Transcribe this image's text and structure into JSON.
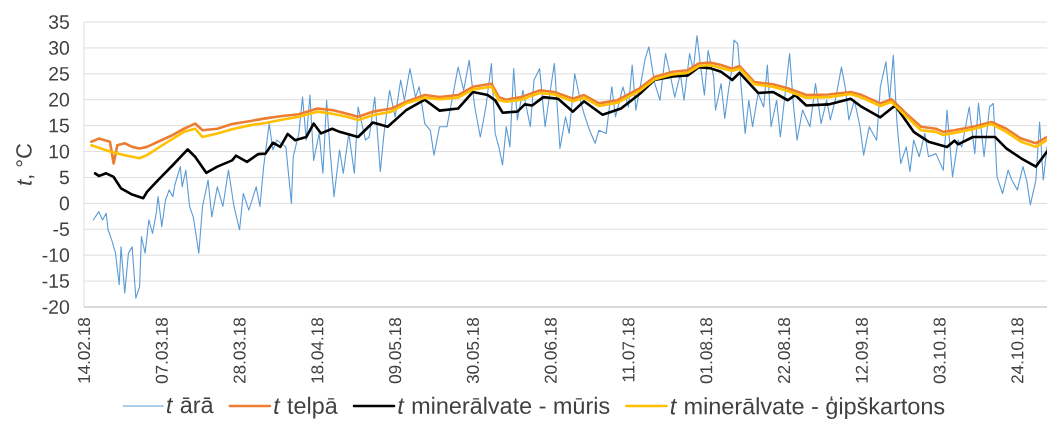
{
  "chart_data": {
    "type": "line",
    "ylabel": "*t*, °C",
    "xlim": [
      "2018-02-14",
      "2018-11-01"
    ],
    "xticks": [
      {
        "value": "2018-02-14",
        "label": "14.02.18"
      },
      {
        "value": "2018-03-07",
        "label": "07.03.18"
      },
      {
        "value": "2018-03-28",
        "label": "28.03.18"
      },
      {
        "value": "2018-04-18",
        "label": "18.04.18"
      },
      {
        "value": "2018-05-09",
        "label": "09.05.18"
      },
      {
        "value": "2018-05-30",
        "label": "30.05.18"
      },
      {
        "value": "2018-06-20",
        "label": "20.06.18"
      },
      {
        "value": "2018-07-11",
        "label": "11.07.18"
      },
      {
        "value": "2018-08-01",
        "label": "01.08.18"
      },
      {
        "value": "2018-08-22",
        "label": "22.08.18"
      },
      {
        "value": "2018-09-12",
        "label": "12.09.18"
      },
      {
        "value": "2018-10-03",
        "label": "03.10.18"
      },
      {
        "value": "2018-10-24",
        "label": "24.10.18"
      }
    ],
    "ylim": [
      -20,
      35
    ],
    "yticks": [
      -20,
      -15,
      -10,
      -5,
      0,
      5,
      10,
      15,
      20,
      25,
      30,
      35
    ],
    "grid": "y",
    "legend": "bottom",
    "series": [
      {
        "name": "*t* ārā",
        "color": "#5b9bd5",
        "x": [
          "2018-02-16T12:00",
          "2018-02-18",
          "2018-02-19",
          "2018-02-20",
          "2018-02-20T12:00",
          "2018-02-21T12:00",
          "2018-02-22T12:00",
          "2018-02-23T12:00",
          "2018-02-24",
          "2018-02-25",
          "2018-02-26",
          "2018-02-27",
          "2018-02-28",
          "2018-03-01",
          "2018-03-01T12:00",
          "2018-03-02T12:00",
          "2018-03-03T12:00",
          "2018-03-04T12:00",
          "2018-03-05T12:00",
          "2018-03-06",
          "2018-03-07",
          "2018-03-08",
          "2018-03-09",
          "2018-03-10",
          "2018-03-10T12:00",
          "2018-03-12",
          "2018-03-12T12:00",
          "2018-03-13T12:00",
          "2018-03-14T12:00",
          "2018-03-15T12:00",
          "2018-03-17",
          "2018-03-18",
          "2018-03-19T12:00",
          "2018-03-20T12:00",
          "2018-03-22",
          "2018-03-23T12:00",
          "2018-03-25",
          "2018-03-26T12:00",
          "2018-03-28",
          "2018-03-29",
          "2018-03-30T12:00",
          "2018-04-01T12:00",
          "2018-04-02T12:00",
          "2018-04-03T12:00",
          "2018-04-05",
          "2018-04-06",
          "2018-04-07",
          "2018-04-09T12:00",
          "2018-04-11",
          "2018-04-11T12:00",
          "2018-04-13",
          "2018-04-14",
          "2018-04-15",
          "2018-04-16",
          "2018-04-17",
          "2018-04-18T12:00",
          "2018-04-19T12:00",
          "2018-04-20T12:00",
          "2018-04-21T12:00",
          "2018-04-22T12:00",
          "2018-04-24",
          "2018-04-25",
          "2018-04-26T12:00",
          "2018-04-28",
          "2018-04-29",
          "2018-05-01",
          "2018-05-02",
          "2018-05-03T12:00",
          "2018-05-05",
          "2018-05-06",
          "2018-05-07T12:00",
          "2018-05-09",
          "2018-05-10T12:00",
          "2018-05-11T12:00",
          "2018-05-13",
          "2018-05-14T12:00",
          "2018-05-15T12:00",
          "2018-05-17",
          "2018-05-18T12:00",
          "2018-05-19T12:00",
          "2018-05-21",
          "2018-05-23",
          "2018-05-24T12:00",
          "2018-05-26",
          "2018-05-27T12:00",
          "2018-05-29",
          "2018-05-30T12:00",
          "2018-06-01",
          "2018-06-02T12:00",
          "2018-06-04",
          "2018-06-05",
          "2018-06-06",
          "2018-06-07",
          "2018-06-08",
          "2018-06-09",
          "2018-06-10",
          "2018-06-11",
          "2018-06-12T12:00",
          "2018-06-14T12:00",
          "2018-06-15T12:00",
          "2018-06-17",
          "2018-06-18T12:00",
          "2018-06-19T12:00",
          "2018-06-21",
          "2018-06-22T12:00",
          "2018-06-24",
          "2018-06-25",
          "2018-06-26T12:00",
          "2018-06-28",
          "2018-06-29",
          "2018-06-30T12:00",
          "2018-07-02",
          "2018-07-03",
          "2018-07-05",
          "2018-07-06T12:00",
          "2018-07-07T12:00",
          "2018-07-09T12:00",
          "2018-07-11",
          "2018-07-12",
          "2018-07-13",
          "2018-07-14T12:00",
          "2018-07-15T12:00",
          "2018-07-16T12:00",
          "2018-07-18",
          "2018-07-19T12:00",
          "2018-07-21",
          "2018-07-22",
          "2018-07-23T12:00",
          "2018-07-25",
          "2018-07-26",
          "2018-07-27T12:00",
          "2018-07-28T12:00",
          "2018-07-29T12:00",
          "2018-07-30T12:00",
          "2018-07-31T12:00",
          "2018-08-01T12:00",
          "2018-08-03",
          "2018-08-03T12:00",
          "2018-08-05",
          "2018-08-06",
          "2018-08-07",
          "2018-08-08",
          "2018-08-08T12:00",
          "2018-08-09T12:00",
          "2018-08-10T12:00",
          "2018-08-11T12:00",
          "2018-08-12T12:00",
          "2018-08-13T12:00",
          "2018-08-15",
          "2018-08-16T12:00",
          "2018-08-17T12:00",
          "2018-08-18T12:00",
          "2018-08-20",
          "2018-08-21",
          "2018-08-22T12:00",
          "2018-08-23T12:00",
          "2018-08-24T12:00",
          "2018-08-25T12:00",
          "2018-08-27",
          "2018-08-29",
          "2018-08-30T12:00",
          "2018-09-01",
          "2018-09-02T12:00",
          "2018-09-03T12:00",
          "2018-09-05",
          "2018-09-06T12:00",
          "2018-09-07T12:00",
          "2018-09-08T12:00",
          "2018-09-10",
          "2018-09-11T12:00",
          "2018-09-12T12:00",
          "2018-09-14",
          "2018-09-16",
          "2018-09-17",
          "2018-09-18T12:00",
          "2018-09-19T12:00",
          "2018-09-20T12:00",
          "2018-09-21T12:00",
          "2018-09-22T12:00",
          "2018-09-24",
          "2018-09-25",
          "2018-09-26",
          "2018-09-27T12:00",
          "2018-09-29",
          "2018-09-30",
          "2018-10-02",
          "2018-10-04",
          "2018-10-05",
          "2018-10-06T12:00",
          "2018-10-08",
          "2018-10-09",
          "2018-10-11",
          "2018-10-12T12:00",
          "2018-10-13T12:00",
          "2018-10-15",
          "2018-10-16T12:00",
          "2018-10-17T12:00",
          "2018-10-18T12:00",
          "2018-10-20",
          "2018-10-21T12:00",
          "2018-10-22T12:00",
          "2018-10-24",
          "2018-10-25T12:00",
          "2018-10-26T12:00",
          "2018-10-27T12:00",
          "2018-10-29",
          "2018-10-30",
          "2018-10-31",
          "2018-11-01"
        ],
        "values": [
          -3.2,
          -1.6,
          -3.2,
          -1.9,
          -5.1,
          -7.1,
          -9.6,
          -15.7,
          -8.4,
          -17.3,
          -9.6,
          -8.4,
          -18.3,
          -16.1,
          -6.4,
          -9.6,
          -3.2,
          -5.8,
          -1.9,
          1.3,
          -4.5,
          0.6,
          2.6,
          1.3,
          3.5,
          7.1,
          3.2,
          6.4,
          -0.6,
          -2.6,
          -9.6,
          -0.6,
          4.5,
          -2.6,
          3.2,
          -0.6,
          6.4,
          -0.6,
          -5.1,
          1.9,
          -1.3,
          3.2,
          -0.6,
          7.1,
          15.4,
          10.3,
          12.2,
          10.9,
          0.0,
          9.0,
          13.5,
          20.5,
          12.2,
          20.9,
          8.3,
          13.5,
          5.8,
          19.9,
          9.6,
          1.3,
          10.3,
          5.8,
          13.5,
          5.8,
          18.6,
          12.2,
          12.8,
          20.5,
          6.1,
          13.5,
          21.8,
          16.7,
          23.8,
          19.9,
          26.0,
          20.5,
          22.5,
          15.4,
          14.1,
          9.3,
          14.8,
          14.8,
          20.5,
          26.3,
          21.8,
          27.6,
          18.6,
          12.8,
          18.6,
          27.0,
          13.5,
          10.9,
          7.4,
          14.8,
          10.9,
          26.0,
          16.1,
          21.8,
          14.8,
          23.8,
          26.0,
          14.8,
          19.9,
          27.0,
          10.6,
          16.7,
          13.5,
          25.0,
          19.9,
          17.3,
          14.1,
          11.6,
          14.1,
          13.5,
          22.5,
          16.7,
          22.5,
          18.6,
          26.7,
          18.0,
          23.8,
          27.9,
          30.2,
          23.4,
          19.9,
          28.9,
          25.7,
          20.5,
          25.0,
          19.9,
          28.9,
          25.7,
          32.4,
          26.3,
          20.9,
          29.5,
          24.4,
          18.0,
          23.1,
          16.4,
          21.8,
          26.3,
          31.5,
          30.8,
          21.8,
          13.5,
          19.9,
          14.8,
          21.2,
          18.6,
          26.7,
          14.8,
          19.9,
          12.8,
          22.5,
          28.9,
          19.3,
          12.2,
          18.0,
          14.8,
          23.1,
          15.4,
          19.9,
          16.1,
          20.5,
          26.3,
          22.5,
          16.1,
          19.9,
          14.8,
          9.3,
          14.8,
          12.2,
          22.5,
          27.3,
          19.9,
          28.6,
          15.4,
          7.7,
          10.9,
          6.1,
          12.2,
          9.0,
          13.5,
          9.0,
          9.6,
          6.4,
          18.0,
          5.1,
          12.2,
          10.9,
          18.6,
          9.6,
          19.3,
          9.0,
          18.6,
          19.3,
          5.1,
          1.9,
          6.4,
          4.5,
          2.6,
          7.1,
          4.5,
          -0.3,
          4.5,
          15.7,
          4.5,
          10.9
        ]
      },
      {
        "name": "*t* telpā",
        "color": "#ed7d31",
        "x": [
          "2018-02-16",
          "2018-02-18",
          "2018-02-21",
          "2018-02-22",
          "2018-02-23",
          "2018-02-25",
          "2018-02-27",
          "2018-03-01",
          "2018-03-03",
          "2018-03-06",
          "2018-03-10",
          "2018-03-13",
          "2018-03-16",
          "2018-03-18",
          "2018-03-22",
          "2018-03-26",
          "2018-03-31",
          "2018-04-04",
          "2018-04-08",
          "2018-04-13",
          "2018-04-18",
          "2018-04-22",
          "2018-04-26",
          "2018-04-29",
          "2018-05-03",
          "2018-05-08",
          "2018-05-12",
          "2018-05-17",
          "2018-05-21",
          "2018-05-26",
          "2018-05-30",
          "2018-06-04",
          "2018-06-06",
          "2018-06-08",
          "2018-06-12",
          "2018-06-17",
          "2018-06-21",
          "2018-06-26",
          "2018-06-29",
          "2018-07-03",
          "2018-07-08",
          "2018-07-14",
          "2018-07-18",
          "2018-07-23",
          "2018-07-27",
          "2018-07-30",
          "2018-08-02",
          "2018-08-05",
          "2018-08-08",
          "2018-08-10",
          "2018-08-14",
          "2018-08-19",
          "2018-08-23",
          "2018-08-28",
          "2018-09-03",
          "2018-09-09",
          "2018-09-12",
          "2018-09-17",
          "2018-09-20",
          "2018-09-24",
          "2018-09-28",
          "2018-10-02",
          "2018-10-04",
          "2018-10-07",
          "2018-10-12",
          "2018-10-17",
          "2018-10-21",
          "2018-10-25",
          "2018-10-29",
          "2018-11-01"
        ],
        "values": [
          11.9,
          12.5,
          11.9,
          7.7,
          11.2,
          11.6,
          10.9,
          10.6,
          10.9,
          11.9,
          13.2,
          14.4,
          15.4,
          14.1,
          14.4,
          15.3,
          15.9,
          16.4,
          16.8,
          17.2,
          18.3,
          18.0,
          17.3,
          16.7,
          17.7,
          18.3,
          19.6,
          20.9,
          20.5,
          20.9,
          22.5,
          23.1,
          20.5,
          20.0,
          20.5,
          21.8,
          21.5,
          20.2,
          20.9,
          19.3,
          19.9,
          22.2,
          24.4,
          25.4,
          25.7,
          27.0,
          27.2,
          26.7,
          26.0,
          26.5,
          23.4,
          23.0,
          22.2,
          20.9,
          21.0,
          21.5,
          20.9,
          19.3,
          20.1,
          17.3,
          14.8,
          14.4,
          13.8,
          14.1,
          14.8,
          15.7,
          14.4,
          12.5,
          11.6,
          12.8
        ]
      },
      {
        "name": "*t* minerālvate - mūris",
        "color": "#000000",
        "x": [
          "2018-02-17",
          "2018-02-18",
          "2018-02-20",
          "2018-02-22",
          "2018-02-24",
          "2018-02-27",
          "2018-03-02",
          "2018-03-03",
          "2018-03-06",
          "2018-03-10",
          "2018-03-14",
          "2018-03-16",
          "2018-03-19",
          "2018-03-22",
          "2018-03-26",
          "2018-03-27",
          "2018-03-30",
          "2018-04-02",
          "2018-04-04",
          "2018-04-06",
          "2018-04-08",
          "2018-04-10",
          "2018-04-12",
          "2018-04-15",
          "2018-04-17",
          "2018-04-19",
          "2018-04-22",
          "2018-04-24",
          "2018-04-29",
          "2018-05-03",
          "2018-05-07",
          "2018-05-12",
          "2018-05-17",
          "2018-05-21",
          "2018-05-26",
          "2018-05-30",
          "2018-06-03",
          "2018-06-05",
          "2018-06-07",
          "2018-06-11",
          "2018-06-13",
          "2018-06-15",
          "2018-06-18",
          "2018-06-22",
          "2018-06-26",
          "2018-06-29",
          "2018-07-04",
          "2018-07-09",
          "2018-07-14",
          "2018-07-18",
          "2018-07-23",
          "2018-07-27",
          "2018-07-30",
          "2018-08-02",
          "2018-08-05",
          "2018-08-08",
          "2018-08-10",
          "2018-08-15",
          "2018-08-19",
          "2018-08-23",
          "2018-08-25",
          "2018-08-28",
          "2018-09-03",
          "2018-09-09",
          "2018-09-12",
          "2018-09-17",
          "2018-09-21",
          "2018-09-26",
          "2018-09-30",
          "2018-10-05",
          "2018-10-07",
          "2018-10-08",
          "2018-10-12",
          "2018-10-18",
          "2018-10-21",
          "2018-10-25",
          "2018-10-29",
          "2018-11-01"
        ],
        "values": [
          5.8,
          5.3,
          5.8,
          5.1,
          2.9,
          1.7,
          1.0,
          2.2,
          4.5,
          7.4,
          10.4,
          9.0,
          5.9,
          7.1,
          8.3,
          9.2,
          8.0,
          9.5,
          9.6,
          11.7,
          10.9,
          13.4,
          12.2,
          12.8,
          15.4,
          13.5,
          14.4,
          13.8,
          12.8,
          15.6,
          14.8,
          18.0,
          20.0,
          17.9,
          18.3,
          21.5,
          20.9,
          19.9,
          17.5,
          17.7,
          19.1,
          18.9,
          20.5,
          20.2,
          17.7,
          19.7,
          17.1,
          18.3,
          21.1,
          23.8,
          24.5,
          24.7,
          26.3,
          26.1,
          25.4,
          23.8,
          25.2,
          21.3,
          21.5,
          19.9,
          20.9,
          18.9,
          19.1,
          20.2,
          18.6,
          16.6,
          18.9,
          13.8,
          11.9,
          10.9,
          12.1,
          11.4,
          12.8,
          12.8,
          10.6,
          8.7,
          7.1,
          10.0
        ]
      },
      {
        "name": "*t* minerālvate - ģipškartons",
        "color": "#ffc000",
        "x": [
          "2018-02-16",
          "2018-02-21",
          "2018-02-25",
          "2018-03-01",
          "2018-03-03",
          "2018-03-08",
          "2018-03-13",
          "2018-03-16",
          "2018-03-18",
          "2018-03-22",
          "2018-03-26",
          "2018-03-31",
          "2018-04-04",
          "2018-04-08",
          "2018-04-13",
          "2018-04-18",
          "2018-04-22",
          "2018-04-26",
          "2018-04-29",
          "2018-05-03",
          "2018-05-08",
          "2018-05-12",
          "2018-05-17",
          "2018-05-21",
          "2018-05-26",
          "2018-05-30",
          "2018-06-04",
          "2018-06-06",
          "2018-06-08",
          "2018-06-12",
          "2018-06-17",
          "2018-06-21",
          "2018-06-26",
          "2018-06-29",
          "2018-07-03",
          "2018-07-08",
          "2018-07-14",
          "2018-07-18",
          "2018-07-23",
          "2018-07-27",
          "2018-07-30",
          "2018-08-02",
          "2018-08-05",
          "2018-08-08",
          "2018-08-10",
          "2018-08-14",
          "2018-08-19",
          "2018-08-23",
          "2018-08-28",
          "2018-09-03",
          "2018-09-09",
          "2018-09-12",
          "2018-09-17",
          "2018-09-20",
          "2018-09-24",
          "2018-09-28",
          "2018-10-02",
          "2018-10-04",
          "2018-10-07",
          "2018-10-12",
          "2018-10-17",
          "2018-10-21",
          "2018-10-25",
          "2018-10-29",
          "2018-11-01"
        ],
        "values": [
          11.2,
          10.0,
          9.3,
          8.7,
          9.3,
          11.6,
          13.8,
          14.4,
          12.8,
          13.5,
          14.3,
          15.1,
          15.5,
          16.1,
          16.7,
          17.7,
          17.3,
          16.7,
          16.1,
          17.0,
          17.7,
          19.3,
          20.4,
          20.1,
          20.4,
          22.0,
          22.5,
          19.9,
          19.6,
          20.0,
          21.3,
          21.0,
          19.7,
          20.4,
          18.8,
          19.4,
          21.7,
          23.9,
          24.9,
          25.2,
          26.5,
          26.7,
          26.1,
          25.6,
          26.0,
          23.0,
          22.5,
          21.7,
          20.4,
          20.5,
          21.1,
          20.4,
          18.8,
          19.6,
          16.8,
          14.1,
          13.8,
          13.2,
          13.6,
          14.3,
          15.3,
          13.8,
          11.9,
          10.9,
          12.2
        ]
      }
    ]
  }
}
